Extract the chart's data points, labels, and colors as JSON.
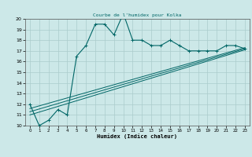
{
  "title": "Courbe de l'humidex pour Kolka",
  "xlabel": "Humidex (Indice chaleur)",
  "bg_color": "#cce8e8",
  "grid_color": "#aacccc",
  "line_color": "#006666",
  "xlim": [
    -0.5,
    23.5
  ],
  "ylim": [
    10,
    20
  ],
  "xticks": [
    0,
    1,
    2,
    3,
    4,
    5,
    6,
    7,
    8,
    9,
    10,
    11,
    12,
    13,
    14,
    15,
    16,
    17,
    18,
    19,
    20,
    21,
    22,
    23
  ],
  "yticks": [
    10,
    11,
    12,
    13,
    14,
    15,
    16,
    17,
    18,
    19,
    20
  ],
  "main_x": [
    0,
    1,
    2,
    3,
    4,
    5,
    6,
    7,
    8,
    9,
    10,
    11,
    12,
    13,
    14,
    15,
    16,
    17,
    18,
    19,
    20,
    21,
    22,
    23
  ],
  "main_y": [
    12,
    10,
    10.5,
    11.5,
    11,
    16.5,
    17.5,
    19.5,
    19.5,
    18.5,
    20.5,
    18,
    18,
    17.5,
    17.5,
    18,
    17.5,
    17,
    17,
    17,
    17,
    17.5,
    17.5,
    17.2
  ],
  "line2_x": [
    0,
    23
  ],
  "line2_y": [
    11.0,
    17.1
  ],
  "line3_x": [
    0,
    23
  ],
  "line3_y": [
    11.3,
    17.2
  ],
  "line4_x": [
    0,
    23
  ],
  "line4_y": [
    11.6,
    17.3
  ]
}
